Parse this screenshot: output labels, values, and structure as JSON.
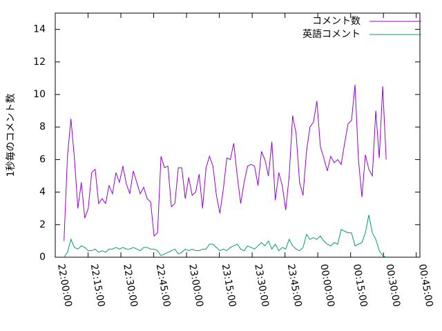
{
  "chart_data": {
    "type": "line",
    "ylabel": "1秒毎のコメント数",
    "xlim": [
      "22:00:00",
      "00:46:40"
    ],
    "xticks": [
      "22:00:00",
      "22:15:00",
      "22:30:00",
      "22:45:00",
      "23:00:00",
      "23:15:00",
      "23:30:00",
      "23:45:00",
      "00:00:00",
      "00:15:00",
      "00:30:00",
      "00:45:00"
    ],
    "ylim": [
      0,
      15
    ],
    "yticks": [
      0,
      2,
      4,
      6,
      8,
      10,
      12,
      14
    ],
    "legend": "top-right",
    "x": [
      "22:04:00",
      "22:05:35",
      "22:07:10",
      "22:08:45",
      "22:10:20",
      "22:11:55",
      "22:13:30",
      "22:15:05",
      "22:16:40",
      "22:18:15",
      "22:19:50",
      "22:21:25",
      "22:23:00",
      "22:24:35",
      "22:26:10",
      "22:27:45",
      "22:29:20",
      "22:30:55",
      "22:32:30",
      "22:34:05",
      "22:35:40",
      "22:37:15",
      "22:38:50",
      "22:40:25",
      "22:42:00",
      "22:43:35",
      "22:45:10",
      "22:46:45",
      "22:48:20",
      "22:49:55",
      "22:51:30",
      "22:53:05",
      "22:54:40",
      "22:56:15",
      "22:57:50",
      "22:59:25",
      "23:01:00",
      "23:02:35",
      "23:04:10",
      "23:05:45",
      "23:07:20",
      "23:08:55",
      "23:10:30",
      "23:12:05",
      "23:13:40",
      "23:15:15",
      "23:16:50",
      "23:18:25",
      "23:20:00",
      "23:21:35",
      "23:23:10",
      "23:24:45",
      "23:26:20",
      "23:27:55",
      "23:29:30",
      "23:31:05",
      "23:32:40",
      "23:34:15",
      "23:35:50",
      "23:37:25",
      "23:39:00",
      "23:40:35",
      "23:42:10",
      "23:43:45",
      "23:45:20",
      "23:46:55",
      "23:48:30",
      "23:50:05",
      "23:51:40",
      "23:53:15",
      "23:54:50",
      "23:56:25",
      "23:58:00",
      "23:59:35",
      "00:01:10",
      "00:02:45",
      "00:04:20",
      "00:05:55",
      "00:07:30",
      "00:09:05",
      "00:10:40",
      "00:12:15",
      "00:13:50",
      "00:15:25",
      "00:17:00",
      "00:18:35",
      "00:20:10",
      "00:21:45",
      "00:23:20",
      "00:24:55",
      "00:26:30",
      "00:28:05",
      "00:29:40",
      "00:31:15"
    ],
    "series": [
      {
        "name": "コメント数",
        "color": "#9400d3",
        "values": [
          1.0,
          6.2,
          8.5,
          6.1,
          3.0,
          4.6,
          2.4,
          3.0,
          5.2,
          5.4,
          3.3,
          3.6,
          3.3,
          4.4,
          3.9,
          5.2,
          4.6,
          5.6,
          4.5,
          3.9,
          5.3,
          4.6,
          3.9,
          4.3,
          3.6,
          3.4,
          1.3,
          1.5,
          6.2,
          5.5,
          5.6,
          3.1,
          3.3,
          5.5,
          5.5,
          3.6,
          4.9,
          3.8,
          4.0,
          5.1,
          3.0,
          5.5,
          6.2,
          5.6,
          3.8,
          2.7,
          4.2,
          6.1,
          6.0,
          7.0,
          5.0,
          3.3,
          4.6,
          5.6,
          5.7,
          5.6,
          4.4,
          6.5,
          6.0,
          5.0,
          7.1,
          3.5,
          5.2,
          4.4,
          2.9,
          5.0,
          8.7,
          7.6,
          4.6,
          3.8,
          6.5,
          8.0,
          8.3,
          9.6,
          6.8,
          6.1,
          5.3,
          6.2,
          5.8,
          6.0,
          5.7,
          7.0,
          8.2,
          8.4,
          10.6,
          6.0,
          3.7,
          6.3,
          5.4,
          5.0,
          9.0,
          6.1,
          10.5,
          6.0
        ]
      },
      {
        "name": "英語コメント",
        "color": "#009e73",
        "values": [
          0.0,
          0.3,
          1.1,
          0.6,
          0.5,
          0.7,
          0.6,
          0.4,
          0.4,
          0.5,
          0.3,
          0.4,
          0.3,
          0.5,
          0.5,
          0.6,
          0.5,
          0.6,
          0.5,
          0.5,
          0.6,
          0.5,
          0.4,
          0.6,
          0.6,
          0.5,
          0.5,
          0.4,
          0.1,
          0.2,
          0.3,
          0.4,
          0.5,
          0.2,
          0.3,
          0.5,
          0.4,
          0.5,
          0.4,
          0.4,
          0.5,
          0.5,
          0.8,
          0.8,
          0.6,
          0.4,
          0.5,
          0.4,
          0.6,
          0.7,
          0.8,
          0.5,
          0.4,
          0.7,
          0.6,
          0.5,
          0.7,
          0.9,
          0.7,
          1.0,
          0.5,
          0.8,
          0.4,
          0.6,
          0.5,
          1.1,
          0.7,
          0.5,
          0.4,
          0.6,
          1.4,
          1.1,
          1.2,
          1.1,
          1.3,
          1.0,
          0.8,
          0.7,
          0.9,
          0.8,
          1.7,
          1.6,
          1.5,
          1.5,
          0.7,
          0.8,
          0.9,
          1.5,
          2.6,
          1.5,
          1.1,
          0.4,
          0.1,
          0.0
        ]
      }
    ]
  }
}
